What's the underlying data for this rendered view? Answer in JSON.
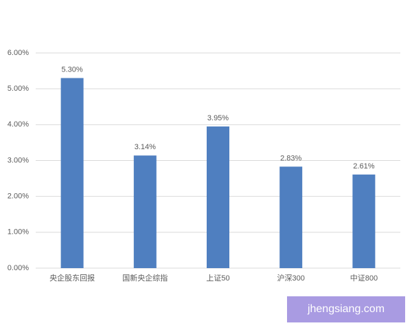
{
  "chart_data": {
    "type": "bar",
    "categories": [
      "央企股东回报",
      "国新央企综指",
      "上证50",
      "沪深300",
      "中证800"
    ],
    "values": [
      5.3,
      3.14,
      3.95,
      2.83,
      2.61
    ],
    "value_labels": [
      "5.30%",
      "3.14%",
      "3.95%",
      "2.83%",
      "2.61%"
    ],
    "color": "#4f7fc0",
    "ylim": [
      0,
      6
    ],
    "yticks": [
      {
        "value": 0,
        "label": "0.00%"
      },
      {
        "value": 1,
        "label": "1.00%"
      },
      {
        "value": 2,
        "label": "2.00%"
      },
      {
        "value": 3,
        "label": "3.00%"
      },
      {
        "value": 4,
        "label": "4.00%"
      },
      {
        "value": 5,
        "label": "5.00%"
      },
      {
        "value": 6,
        "label": "6.00%"
      }
    ],
    "grid": true
  },
  "watermark": "jhengsiang.com"
}
